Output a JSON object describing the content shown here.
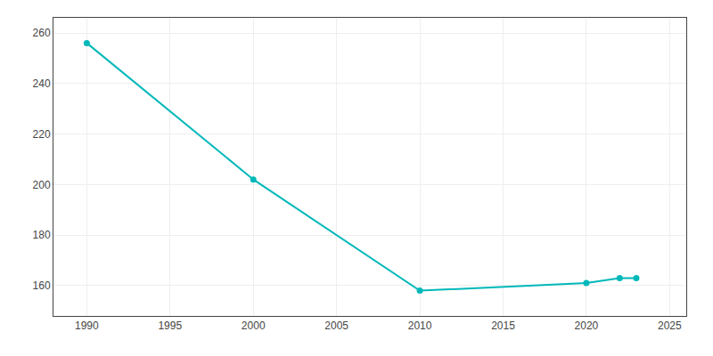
{
  "chart_data": {
    "type": "line",
    "x": [
      1990,
      2000,
      2010,
      2020,
      2022,
      2023
    ],
    "values": [
      256,
      202,
      158,
      161,
      163,
      163
    ],
    "color": "#00B8BA",
    "marker": "circle",
    "xlim": [
      1988,
      2026
    ],
    "ylim": [
      148,
      266
    ],
    "xticks": [
      1990,
      1995,
      2000,
      2005,
      2010,
      2015,
      2020,
      2025
    ],
    "yticks": [
      160,
      180,
      200,
      220,
      240,
      260
    ],
    "grid": true
  }
}
